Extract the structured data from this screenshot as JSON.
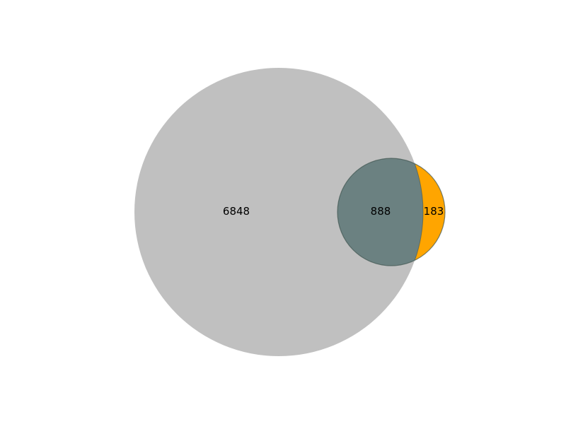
{
  "chart_data": {
    "type": "venn",
    "sets": [
      {
        "color": "#c0c0c0"
      },
      {
        "color": "#ffa500"
      }
    ],
    "regions": {
      "only_a": 6848,
      "only_b": 183,
      "a_and_b": 888
    },
    "overlap_color": "#6b8181",
    "labels": {
      "only_a": "6848",
      "a_and_b": "888",
      "only_b": "183"
    }
  }
}
